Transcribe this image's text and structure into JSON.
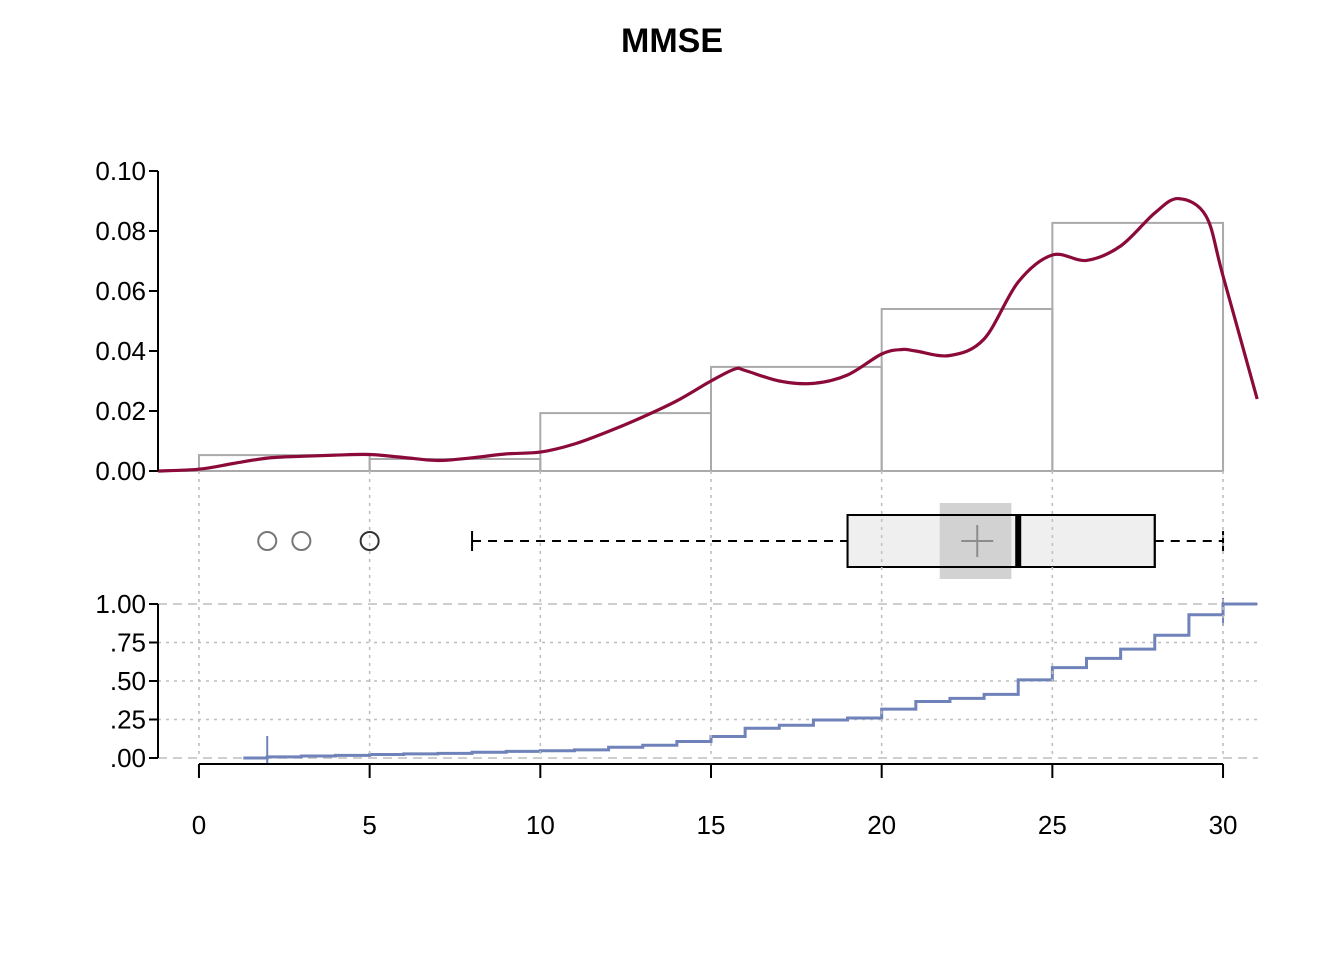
{
  "chart_data": [
    {
      "type": "histogram",
      "panel": "density",
      "title": "MMSE",
      "bins": [
        {
          "from": 0,
          "to": 5,
          "density": 0.0053
        },
        {
          "from": 5,
          "to": 10,
          "density": 0.004
        },
        {
          "from": 10,
          "to": 15,
          "density": 0.0193
        },
        {
          "from": 15,
          "to": 20,
          "density": 0.0347
        },
        {
          "from": 20,
          "to": 25,
          "density": 0.054
        },
        {
          "from": 25,
          "to": 30,
          "density": 0.0827
        }
      ],
      "density_curve": {
        "x": [
          -1.2,
          0,
          1,
          2,
          3,
          4,
          5,
          6,
          7,
          8,
          9,
          10,
          11,
          12,
          13,
          14,
          15,
          15.7,
          16,
          17,
          18,
          19,
          20,
          20.6,
          21,
          22,
          23,
          24,
          25,
          26,
          27,
          28,
          28.7,
          29.5,
          30,
          31
        ],
        "y": [
          0.0,
          0.0006,
          0.0025,
          0.0043,
          0.0049,
          0.0053,
          0.0055,
          0.0045,
          0.0035,
          0.0044,
          0.0057,
          0.0063,
          0.009,
          0.0132,
          0.018,
          0.0234,
          0.03,
          0.034,
          0.0335,
          0.03,
          0.0292,
          0.032,
          0.039,
          0.0405,
          0.04,
          0.0385,
          0.044,
          0.063,
          0.072,
          0.0702,
          0.075,
          0.086,
          0.0908,
          0.085,
          0.065,
          0.024
        ],
        "color": "#8B0A3A"
      },
      "ylim": [
        0,
        0.1
      ],
      "yticks": [
        "0.00",
        "0.02",
        "0.04",
        "0.06",
        "0.08",
        "0.10"
      ],
      "ytick_values": [
        0,
        0.02,
        0.04,
        0.06,
        0.08,
        0.1
      ],
      "bar_color": "#AAAAAA"
    },
    {
      "type": "boxplot",
      "panel": "box",
      "whisker_low": 8,
      "q1": 19,
      "median": 24,
      "q3": 28,
      "whisker_high": 30,
      "mean": 22.8,
      "mean_ci": [
        21.7,
        23.8
      ],
      "outliers": [
        2,
        3,
        5
      ],
      "box_fill": "#EFEFEF",
      "ci_fill": "#D0D0D0"
    },
    {
      "type": "ecdf",
      "panel": "ecdf",
      "x": [
        1.3,
        2,
        3,
        4,
        5,
        6,
        7,
        8,
        9,
        10,
        11,
        12,
        13,
        14,
        15,
        16,
        17,
        18,
        19,
        20,
        21,
        22,
        23,
        24,
        25,
        26,
        27,
        28,
        29,
        30,
        31
      ],
      "y": [
        0,
        0.007,
        0.013,
        0.017,
        0.023,
        0.027,
        0.03,
        0.037,
        0.043,
        0.047,
        0.053,
        0.07,
        0.083,
        0.107,
        0.14,
        0.193,
        0.213,
        0.247,
        0.26,
        0.317,
        0.367,
        0.387,
        0.413,
        0.507,
        0.587,
        0.647,
        0.707,
        0.797,
        0.93,
        1.0,
        1.0
      ],
      "ylim": [
        0,
        1
      ],
      "yticks": [
        ".00",
        ".25",
        ".50",
        ".75",
        "1.00"
      ],
      "ytick_values": [
        0,
        0.25,
        0.5,
        0.75,
        1
      ],
      "line_color": "#6F82BA"
    }
  ],
  "xaxis": {
    "xlim": [
      -1.2,
      31.2
    ],
    "ticks": [
      "0",
      "5",
      "10",
      "15",
      "20",
      "25",
      "30"
    ],
    "tick_values": [
      0,
      5,
      10,
      15,
      20,
      25,
      30
    ]
  }
}
